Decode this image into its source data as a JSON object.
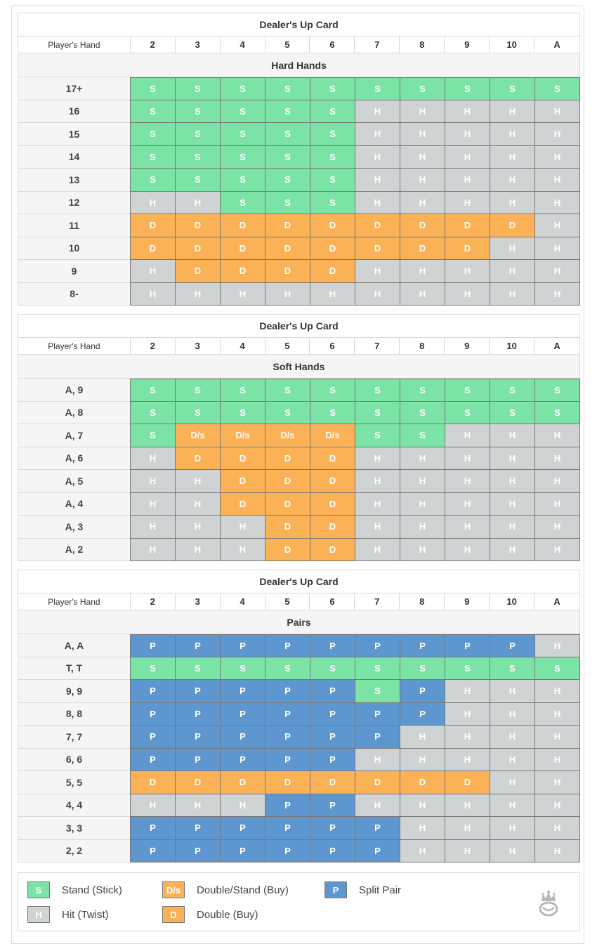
{
  "columns": [
    "2",
    "3",
    "4",
    "5",
    "6",
    "7",
    "8",
    "9",
    "10",
    "A"
  ],
  "player_hand_label": "Player's Hand",
  "dealer_title": "Dealer's Up Card",
  "sections": [
    {
      "title": "Hard Hands",
      "rows": [
        {
          "label": "17+",
          "cells": [
            "S",
            "S",
            "S",
            "S",
            "S",
            "S",
            "S",
            "S",
            "S",
            "S"
          ]
        },
        {
          "label": "16",
          "cells": [
            "S",
            "S",
            "S",
            "S",
            "S",
            "H",
            "H",
            "H",
            "H",
            "H"
          ]
        },
        {
          "label": "15",
          "cells": [
            "S",
            "S",
            "S",
            "S",
            "S",
            "H",
            "H",
            "H",
            "H",
            "H"
          ]
        },
        {
          "label": "14",
          "cells": [
            "S",
            "S",
            "S",
            "S",
            "S",
            "H",
            "H",
            "H",
            "H",
            "H"
          ]
        },
        {
          "label": "13",
          "cells": [
            "S",
            "S",
            "S",
            "S",
            "S",
            "H",
            "H",
            "H",
            "H",
            "H"
          ]
        },
        {
          "label": "12",
          "cells": [
            "H",
            "H",
            "S",
            "S",
            "S",
            "H",
            "H",
            "H",
            "H",
            "H"
          ]
        },
        {
          "label": "11",
          "cells": [
            "D",
            "D",
            "D",
            "D",
            "D",
            "D",
            "D",
            "D",
            "D",
            "H"
          ]
        },
        {
          "label": "10",
          "cells": [
            "D",
            "D",
            "D",
            "D",
            "D",
            "D",
            "D",
            "D",
            "H",
            "H"
          ]
        },
        {
          "label": "9",
          "cells": [
            "H",
            "D",
            "D",
            "D",
            "D",
            "H",
            "H",
            "H",
            "H",
            "H"
          ]
        },
        {
          "label": "8-",
          "cells": [
            "H",
            "H",
            "H",
            "H",
            "H",
            "H",
            "H",
            "H",
            "H",
            "H"
          ]
        }
      ]
    },
    {
      "title": "Soft Hands",
      "rows": [
        {
          "label": "A, 9",
          "cells": [
            "S",
            "S",
            "S",
            "S",
            "S",
            "S",
            "S",
            "S",
            "S",
            "S"
          ]
        },
        {
          "label": "A, 8",
          "cells": [
            "S",
            "S",
            "S",
            "S",
            "S",
            "S",
            "S",
            "S",
            "S",
            "S"
          ]
        },
        {
          "label": "A, 7",
          "cells": [
            "S",
            "D/s",
            "D/s",
            "D/s",
            "D/s",
            "S",
            "S",
            "H",
            "H",
            "H"
          ]
        },
        {
          "label": "A, 6",
          "cells": [
            "H",
            "D",
            "D",
            "D",
            "D",
            "H",
            "H",
            "H",
            "H",
            "H"
          ]
        },
        {
          "label": "A, 5",
          "cells": [
            "H",
            "H",
            "D",
            "D",
            "D",
            "H",
            "H",
            "H",
            "H",
            "H"
          ]
        },
        {
          "label": "A, 4",
          "cells": [
            "H",
            "H",
            "D",
            "D",
            "D",
            "H",
            "H",
            "H",
            "H",
            "H"
          ]
        },
        {
          "label": "A, 3",
          "cells": [
            "H",
            "H",
            "H",
            "D",
            "D",
            "H",
            "H",
            "H",
            "H",
            "H"
          ]
        },
        {
          "label": "A, 2",
          "cells": [
            "H",
            "H",
            "H",
            "D",
            "D",
            "H",
            "H",
            "H",
            "H",
            "H"
          ]
        }
      ]
    },
    {
      "title": "Pairs",
      "rows": [
        {
          "label": "A, A",
          "cells": [
            "P",
            "P",
            "P",
            "P",
            "P",
            "P",
            "P",
            "P",
            "P",
            "H"
          ]
        },
        {
          "label": "T, T",
          "cells": [
            "S",
            "S",
            "S",
            "S",
            "S",
            "S",
            "S",
            "S",
            "S",
            "S"
          ]
        },
        {
          "label": "9, 9",
          "cells": [
            "P",
            "P",
            "P",
            "P",
            "P",
            "S",
            "P",
            "H",
            "H",
            "H"
          ]
        },
        {
          "label": "8, 8",
          "cells": [
            "P",
            "P",
            "P",
            "P",
            "P",
            "P",
            "P",
            "H",
            "H",
            "H"
          ]
        },
        {
          "label": "7, 7",
          "cells": [
            "P",
            "P",
            "P",
            "P",
            "P",
            "P",
            "H",
            "H",
            "H",
            "H"
          ]
        },
        {
          "label": "6, 6",
          "cells": [
            "P",
            "P",
            "P",
            "P",
            "P",
            "H",
            "H",
            "H",
            "H",
            "H"
          ]
        },
        {
          "label": "5, 5",
          "cells": [
            "D",
            "D",
            "D",
            "D",
            "D",
            "D",
            "D",
            "D",
            "H",
            "H"
          ]
        },
        {
          "label": "4, 4",
          "cells": [
            "H",
            "H",
            "H",
            "P",
            "P",
            "H",
            "H",
            "H",
            "H",
            "H"
          ]
        },
        {
          "label": "3, 3",
          "cells": [
            "P",
            "P",
            "P",
            "P",
            "P",
            "P",
            "H",
            "H",
            "H",
            "H"
          ]
        },
        {
          "label": "2, 2",
          "cells": [
            "P",
            "P",
            "P",
            "P",
            "P",
            "P",
            "H",
            "H",
            "H",
            "H"
          ]
        }
      ]
    }
  ],
  "legend": [
    {
      "code": "S",
      "text": "Stand (Stick)"
    },
    {
      "code": "H",
      "text": "Hit (Twist)"
    },
    {
      "code": "D/s",
      "text": "Double/Stand (Buy)"
    },
    {
      "code": "D",
      "text": "Double (Buy)"
    },
    {
      "code": "P",
      "text": "Split Pair"
    }
  ],
  "colors": {
    "S": "#7ce3a7",
    "H": "#d0d3d4",
    "D": "#fbb257",
    "D/s": "#fbb257",
    "P": "#5e97d0"
  },
  "logo_icon": "crown-logo-icon"
}
